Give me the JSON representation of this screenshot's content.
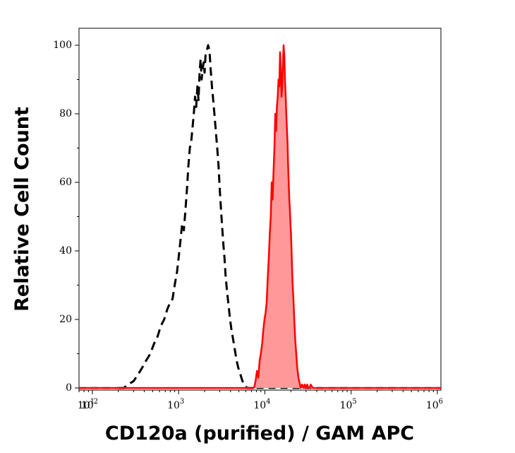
{
  "chart_data": {
    "type": "area",
    "xlabel": "CD120a (purified) / GAM APC",
    "ylabel": "Relative Cell Count",
    "xscale": "log",
    "xlim": [
      70,
      1100000
    ],
    "ylim": [
      0,
      105
    ],
    "x_ticks": [
      {
        "value": 10,
        "base": "10",
        "exp": "1"
      },
      {
        "value": 100,
        "base": "10",
        "exp": "2"
      },
      {
        "value": 1000,
        "base": "10",
        "exp": "3"
      },
      {
        "value": 10000,
        "base": "10",
        "exp": "4"
      },
      {
        "value": 100000,
        "base": "10",
        "exp": "5"
      },
      {
        "value": 1000000,
        "base": "10",
        "exp": "6"
      }
    ],
    "y_ticks": [
      "0",
      "20",
      "40",
      "60",
      "80",
      "100"
    ],
    "grid": false,
    "series": [
      {
        "style": "dashed",
        "color": "#000000",
        "fill": "none",
        "x": [
          200,
          230,
          260,
          300,
          340,
          380,
          420,
          470,
          520,
          570,
          620,
          680,
          740,
          800,
          850,
          900,
          960,
          1000,
          1050,
          1100,
          1150,
          1200,
          1250,
          1300,
          1350,
          1400,
          1450,
          1500,
          1550,
          1600,
          1650,
          1700,
          1750,
          1800,
          1850,
          1900,
          1950,
          2000,
          2050,
          2100,
          2150,
          2200,
          2250,
          2300,
          2350,
          2400,
          2450,
          2500,
          2600,
          2700,
          2800,
          2900,
          3000,
          3100,
          3200,
          3300,
          3400,
          3500,
          3650,
          3800,
          3950,
          4100,
          4300,
          4500,
          4700,
          4900,
          5200,
          5500,
          5800,
          6200,
          6600,
          7000,
          8000
        ],
        "values": [
          0,
          0,
          1,
          2,
          4,
          6,
          8,
          10,
          13,
          15,
          18,
          20,
          23,
          25,
          26,
          30,
          34,
          38,
          43,
          48,
          46,
          52,
          58,
          65,
          70,
          72,
          76,
          80,
          85,
          82,
          88,
          84,
          92,
          96,
          90,
          93,
          95,
          92,
          97,
          98,
          99,
          100,
          99,
          97,
          93,
          90,
          87,
          85,
          80,
          75,
          70,
          65,
          58,
          52,
          47,
          42,
          38,
          33,
          28,
          24,
          20,
          17,
          14,
          11,
          8,
          6,
          4,
          2,
          1,
          0,
          0,
          0,
          0
        ]
      },
      {
        "style": "solid",
        "color": "#ff0000",
        "fill": "#ff9999",
        "x": [
          7500,
          7800,
          8100,
          8400,
          8700,
          9000,
          9300,
          9600,
          9900,
          10200,
          10500,
          10800,
          11100,
          11400,
          11700,
          12000,
          12300,
          12600,
          12900,
          13200,
          13500,
          13800,
          14100,
          14400,
          14700,
          15000,
          15300,
          15600,
          15900,
          16200,
          16500,
          16800,
          17100,
          17400,
          17700,
          18000,
          18300,
          18600,
          18900,
          19200,
          19500,
          19800,
          20100,
          20400,
          20700,
          21000,
          21300,
          21600,
          21900,
          22200,
          22500,
          22800,
          23100,
          23400,
          23700,
          24000,
          24500,
          25000,
          25500,
          26000,
          27000,
          28000,
          29000,
          30000,
          31000,
          32000,
          33000,
          34000,
          36000,
          38000
        ],
        "values": [
          0,
          2,
          5,
          3,
          8,
          10,
          13,
          17,
          20,
          22,
          25,
          32,
          38,
          45,
          50,
          60,
          55,
          63,
          70,
          80,
          75,
          82,
          85,
          90,
          88,
          98,
          93,
          85,
          88,
          95,
          100,
          97,
          90,
          86,
          80,
          76,
          72,
          65,
          60,
          55,
          52,
          48,
          45,
          40,
          34,
          30,
          27,
          24,
          20,
          17,
          14,
          12,
          10,
          8,
          6,
          5,
          3,
          2,
          1,
          0,
          1,
          0,
          1,
          0,
          1,
          0,
          0,
          1,
          0,
          0
        ]
      }
    ]
  }
}
